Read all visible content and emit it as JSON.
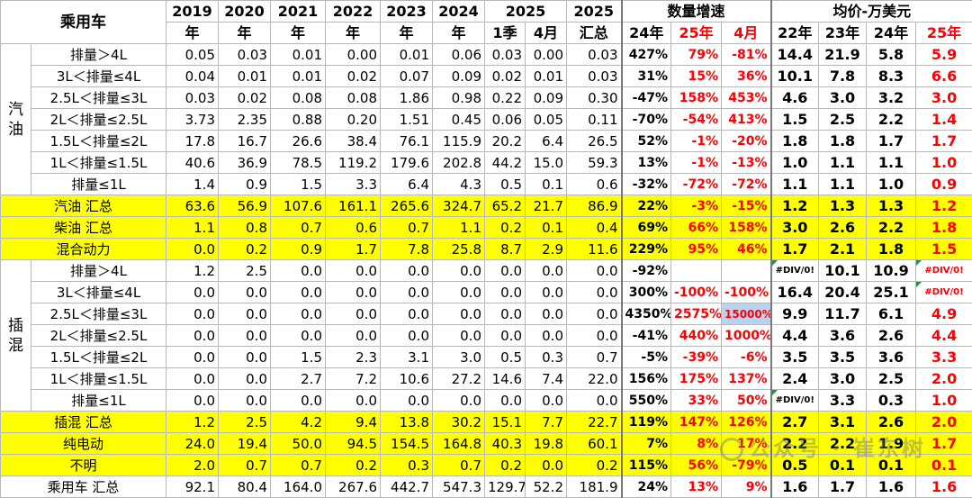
{
  "header": {
    "corner": "乘用车",
    "years": [
      {
        "top": "2019",
        "bottom": "年"
      },
      {
        "top": "2020",
        "bottom": "年"
      },
      {
        "top": "2021",
        "bottom": "年"
      },
      {
        "top": "2022",
        "bottom": "年"
      },
      {
        "top": "2023",
        "bottom": "年"
      },
      {
        "top": "2024",
        "bottom": "年"
      }
    ],
    "y2025": "2025",
    "q1": "1季",
    "apr": "4月",
    "total_top": "2025",
    "total_bottom": "汇总",
    "growth_title": "数量增速",
    "growth_cols": [
      "24年",
      "25年",
      "4月"
    ],
    "price_title": "均价-万美元",
    "price_cols": [
      "22年",
      "23年",
      "24年",
      "25年"
    ]
  },
  "groups": [
    {
      "name": "汽\n油",
      "rows": [
        0,
        6
      ]
    },
    {
      "name": "插\n混",
      "rows": [
        10,
        16
      ]
    }
  ],
  "rows": [
    {
      "label": "排量＞4L",
      "vals": [
        "0.05",
        "0.03",
        "0.01",
        "0.00",
        "0.01",
        "0.06",
        "0.03",
        "0.00",
        "0.03"
      ],
      "growth": [
        "427%",
        "79%",
        "-81%"
      ],
      "price": [
        "14.4",
        "21.9",
        "5.8",
        "5.9"
      ],
      "type": "sub"
    },
    {
      "label": "3L＜排量≤4L",
      "vals": [
        "0.04",
        "0.01",
        "0.01",
        "0.02",
        "0.07",
        "0.09",
        "0.02",
        "0.01",
        "0.03"
      ],
      "growth": [
        "31%",
        "15%",
        "36%"
      ],
      "price": [
        "10.1",
        "7.8",
        "8.3",
        "6.6"
      ],
      "type": "sub"
    },
    {
      "label": "2.5L＜排量≤3L",
      "vals": [
        "0.03",
        "0.02",
        "0.08",
        "0.08",
        "1.86",
        "0.98",
        "0.22",
        "0.09",
        "0.30"
      ],
      "growth": [
        "-47%",
        "158%",
        "453%"
      ],
      "price": [
        "4.6",
        "3.0",
        "3.2",
        "3.0"
      ],
      "type": "sub"
    },
    {
      "label": "2L＜排量≤2.5L",
      "vals": [
        "3.73",
        "2.35",
        "0.88",
        "0.20",
        "1.51",
        "0.45",
        "0.06",
        "0.05",
        "0.11"
      ],
      "growth": [
        "-70%",
        "-54%",
        "413%"
      ],
      "price": [
        "1.5",
        "2.5",
        "2.2",
        "1.4"
      ],
      "type": "sub"
    },
    {
      "label": "1.5L＜排量≤2L",
      "vals": [
        "17.8",
        "16.7",
        "26.6",
        "38.4",
        "76.1",
        "115.9",
        "20.2",
        "6.4",
        "26.5"
      ],
      "growth": [
        "52%",
        "-1%",
        "-20%"
      ],
      "price": [
        "1.8",
        "1.8",
        "1.7",
        "1.7"
      ],
      "type": "sub"
    },
    {
      "label": "1L＜排量≤1.5L",
      "vals": [
        "40.6",
        "36.9",
        "78.5",
        "119.2",
        "179.6",
        "202.8",
        "44.2",
        "15.0",
        "59.3"
      ],
      "growth": [
        "13%",
        "-1%",
        "-13%"
      ],
      "price": [
        "1.0",
        "1.1",
        "1.1",
        "1.0"
      ],
      "type": "sub"
    },
    {
      "label": "排量≤1L",
      "vals": [
        "1.4",
        "0.9",
        "1.5",
        "3.3",
        "6.4",
        "4.3",
        "0.5",
        "0.1",
        "0.6"
      ],
      "growth": [
        "-32%",
        "-72%",
        "-72%"
      ],
      "price": [
        "1.1",
        "1.1",
        "1.0",
        "0.9"
      ],
      "type": "sub"
    },
    {
      "label": "汽油 汇总",
      "vals": [
        "63.6",
        "56.9",
        "107.6",
        "161.1",
        "265.6",
        "324.7",
        "65.2",
        "21.7",
        "86.9"
      ],
      "growth": [
        "22%",
        "-3%",
        "-15%"
      ],
      "price": [
        "1.2",
        "1.3",
        "1.3",
        "1.2"
      ],
      "type": "sum"
    },
    {
      "label": "柴油 汇总",
      "vals": [
        "1.1",
        "0.8",
        "0.7",
        "0.6",
        "0.7",
        "1.1",
        "0.2",
        "0.1",
        "0.4"
      ],
      "growth": [
        "69%",
        "66%",
        "158%"
      ],
      "price": [
        "3.0",
        "2.6",
        "2.2",
        "1.8"
      ],
      "type": "sum"
    },
    {
      "label": "混合动力",
      "vals": [
        "0.0",
        "0.2",
        "0.9",
        "1.7",
        "7.8",
        "25.8",
        "8.7",
        "2.9",
        "11.6"
      ],
      "growth": [
        "229%",
        "95%",
        "46%"
      ],
      "price": [
        "1.7",
        "2.1",
        "1.8",
        "1.5"
      ],
      "type": "sum"
    },
    {
      "label": "排量＞4L",
      "vals": [
        "1.2",
        "2.5",
        "0.0",
        "0.0",
        "0.0",
        "0.0",
        "0.0",
        "0.0",
        "0.0"
      ],
      "growth": [
        "-92%",
        "",
        ""
      ],
      "price": [
        "#DIV/0!",
        "10.1",
        "10.9",
        "#DIV/0!"
      ],
      "type": "sub"
    },
    {
      "label": "3L＜排量≤4L",
      "vals": [
        "0.0",
        "0.0",
        "0.0",
        "0.0",
        "0.0",
        "0.0",
        "0.0",
        "0.0",
        "0.0"
      ],
      "growth": [
        "300%",
        "-100%",
        "-100%"
      ],
      "price": [
        "16.4",
        "20.4",
        "25.1",
        "#DIV/0!"
      ],
      "type": "sub"
    },
    {
      "label": "2.5L＜排量≤3L",
      "vals": [
        "0.0",
        "0.0",
        "0.0",
        "0.0",
        "0.0",
        "0.0",
        "0.0",
        "0.0",
        "0.0"
      ],
      "growth": [
        "4350%",
        "2575%",
        "15000%"
      ],
      "price": [
        "9.9",
        "11.7",
        "6.1",
        "4.9"
      ],
      "type": "sub"
    },
    {
      "label": "2L＜排量≤2.5L",
      "vals": [
        "0.0",
        "0.0",
        "0.0",
        "0.0",
        "0.0",
        "0.0",
        "0.0",
        "0.0",
        "0.0"
      ],
      "growth": [
        "-41%",
        "440%",
        "1000%"
      ],
      "price": [
        "4.4",
        "3.6",
        "2.6",
        "4.4"
      ],
      "type": "sub"
    },
    {
      "label": "1.5L＜排量≤2L",
      "vals": [
        "0.0",
        "0.0",
        "1.5",
        "2.3",
        "3.1",
        "3.0",
        "0.5",
        "0.3",
        "0.7"
      ],
      "growth": [
        "-5%",
        "-39%",
        "-6%"
      ],
      "price": [
        "3.5",
        "3.5",
        "3.6",
        "3.3"
      ],
      "type": "sub"
    },
    {
      "label": "1L＜排量≤1.5L",
      "vals": [
        "0.0",
        "0.0",
        "2.7",
        "7.2",
        "10.6",
        "27.2",
        "14.6",
        "7.4",
        "22.0"
      ],
      "growth": [
        "156%",
        "175%",
        "137%"
      ],
      "price": [
        "2.4",
        "3.0",
        "2.5",
        "2.0"
      ],
      "type": "sub"
    },
    {
      "label": "排量≤1L",
      "vals": [
        "0.0",
        "0.0",
        "0.0",
        "0.0",
        "0.0",
        "0.0",
        "0.0",
        "0.0",
        "0.0"
      ],
      "growth": [
        "550%",
        "33%",
        "50%"
      ],
      "price": [
        "#DIV/0!",
        "3.3",
        "0.3",
        "1.0"
      ],
      "type": "sub"
    },
    {
      "label": "插混 汇总",
      "vals": [
        "1.2",
        "2.5",
        "4.2",
        "9.4",
        "13.8",
        "30.2",
        "15.1",
        "7.7",
        "22.7"
      ],
      "growth": [
        "119%",
        "147%",
        "126%"
      ],
      "price": [
        "2.7",
        "3.1",
        "2.6",
        "2.0"
      ],
      "type": "sum"
    },
    {
      "label": "纯电动",
      "vals": [
        "24.0",
        "19.4",
        "50.0",
        "94.5",
        "154.5",
        "164.8",
        "40.3",
        "19.8",
        "60.1"
      ],
      "growth": [
        "7%",
        "8%",
        "17%"
      ],
      "price": [
        "2.2",
        "2.2",
        "1.9",
        "1.7"
      ],
      "type": "sum"
    },
    {
      "label": "不明",
      "vals": [
        "2.0",
        "0.7",
        "0.7",
        "0.2",
        "0.3",
        "0.7",
        "0.2",
        "0.0",
        "0.2"
      ],
      "growth": [
        "115%",
        "56%",
        "-79%"
      ],
      "price": [
        "0.5",
        "0.1",
        "0.1",
        "0.1"
      ],
      "type": "sum"
    },
    {
      "label": "乘用车 汇总",
      "vals": [
        "92.1",
        "80.4",
        "164.0",
        "267.6",
        "442.7",
        "547.3",
        "129.7",
        "52.2",
        "181.9"
      ],
      "growth": [
        "24%",
        "13%",
        "9%"
      ],
      "price": [
        "1.6",
        "1.7",
        "1.6",
        "1.6"
      ],
      "type": "total"
    }
  ],
  "watermark": "公众号 · 崔东树",
  "colors": {
    "highlight_yellow": "#ffff00",
    "negative_red": "#ff0000",
    "selected_blue": "#b7d3f2"
  }
}
